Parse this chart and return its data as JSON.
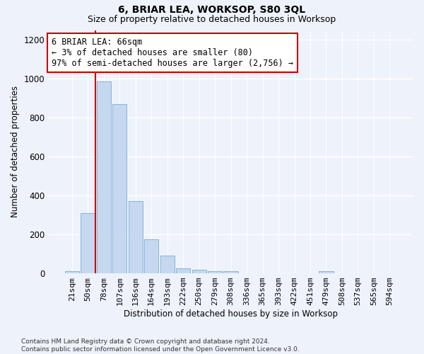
{
  "title": "6, BRIAR LEA, WORKSOP, S80 3QL",
  "subtitle": "Size of property relative to detached houses in Worksop",
  "xlabel": "Distribution of detached houses by size in Worksop",
  "ylabel": "Number of detached properties",
  "bar_color": "#c5d8f0",
  "bar_edge_color": "#7aadd4",
  "background_color": "#eef2fa",
  "grid_color": "#ffffff",
  "categories": [
    "21sqm",
    "50sqm",
    "78sqm",
    "107sqm",
    "136sqm",
    "164sqm",
    "193sqm",
    "222sqm",
    "250sqm",
    "279sqm",
    "308sqm",
    "336sqm",
    "365sqm",
    "393sqm",
    "422sqm",
    "451sqm",
    "479sqm",
    "508sqm",
    "537sqm",
    "565sqm",
    "594sqm"
  ],
  "values": [
    10,
    310,
    985,
    870,
    370,
    175,
    90,
    25,
    20,
    10,
    10,
    0,
    0,
    0,
    0,
    0,
    10,
    0,
    0,
    0,
    0
  ],
  "vline_color": "#cc0000",
  "annotation_line1": "6 BRIAR LEA: 66sqm",
  "annotation_line2": "← 3% of detached houses are smaller (80)",
  "annotation_line3": "97% of semi-detached houses are larger (2,756) →",
  "annotation_box_color": "#ffffff",
  "annotation_box_edge": "#cc0000",
  "ylim": [
    0,
    1250
  ],
  "yticks": [
    0,
    200,
    400,
    600,
    800,
    1000,
    1200
  ],
  "footnote": "Contains HM Land Registry data © Crown copyright and database right 2024.\nContains public sector information licensed under the Open Government Licence v3.0.",
  "title_fontsize": 10,
  "subtitle_fontsize": 9,
  "xlabel_fontsize": 8.5,
  "ylabel_fontsize": 8.5,
  "annotation_fontsize": 8.5
}
